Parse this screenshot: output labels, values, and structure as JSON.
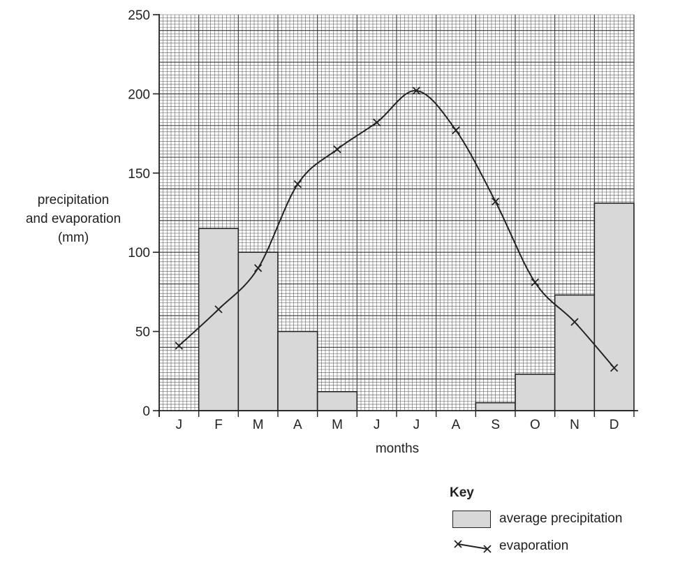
{
  "chart_data": {
    "type": "bar+line",
    "title": "",
    "xlabel": "months",
    "ylabel_lines": [
      "precipitation",
      "and evaporation",
      "(mm)"
    ],
    "ylim": [
      0,
      250
    ],
    "yticks": [
      0,
      50,
      100,
      150,
      200,
      250
    ],
    "grid": true,
    "categories": [
      "J",
      "F",
      "M",
      "A",
      "M",
      "J",
      "J",
      "A",
      "S",
      "O",
      "N",
      "D"
    ],
    "series": [
      {
        "name": "average precipitation",
        "kind": "bar",
        "values": [
          0,
          115,
          100,
          50,
          12,
          0,
          0,
          0,
          5,
          23,
          73,
          131
        ]
      },
      {
        "name": "evaporation",
        "kind": "line",
        "values": [
          41,
          64,
          90,
          143,
          165,
          182,
          202,
          177,
          132,
          81,
          56,
          27
        ]
      }
    ]
  },
  "key": {
    "title": "Key",
    "bar_label": "average precipitation",
    "line_label": "evaporation"
  },
  "colors": {
    "bar_fill": "#d8d8d8",
    "ink": "#222222",
    "grid": "#555555"
  }
}
